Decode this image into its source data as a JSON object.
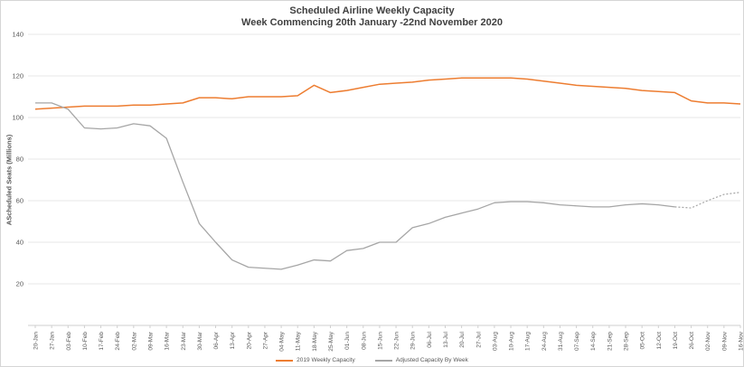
{
  "window": {
    "background": "#ffffff",
    "border_color": "#d6d6d6"
  },
  "chart_data": {
    "type": "line",
    "title": "Scheduled Airline Weekly Capacity",
    "subtitle": "Week Commencing 20th January -22nd November 2020",
    "ylabel": "AScheduled Seats (Millions)",
    "xlabel": "",
    "ylim": [
      0,
      140
    ],
    "yticks": [
      20,
      40,
      60,
      80,
      100,
      120,
      140
    ],
    "grid": true,
    "legend_position": "bottom",
    "gridline_color": "#e7e7e7",
    "axis_color": "#cfcfcf",
    "tick_label_color": "#595959",
    "categories": [
      "20-Jan",
      "27-Jan",
      "03-Feb",
      "10-Feb",
      "17-Feb",
      "24-Feb",
      "02-Mar",
      "09-Mar",
      "16-Mar",
      "23-Mar",
      "30-Mar",
      "06-Apr",
      "13-Apr",
      "20-Apr",
      "27-Apr",
      "04-May",
      "11-May",
      "18-May",
      "25-May",
      "01-Jun",
      "08-Jun",
      "15-Jun",
      "22-Jun",
      "29-Jun",
      "06-Jul",
      "13-Jul",
      "20-Jul",
      "27-Jul",
      "03-Aug",
      "10-Aug",
      "17-Aug",
      "24-Aug",
      "31-Aug",
      "07-Sep",
      "14-Sep",
      "21-Sep",
      "28-Sep",
      "05-Oct",
      "12-Oct",
      "19-Oct",
      "26-Oct",
      "02-Nov",
      "09-Nov",
      "16-Nov"
    ],
    "series": [
      {
        "name": "2019 Weekly Capacity",
        "color": "#ED7D31",
        "line_style": "solid",
        "values": [
          104,
          104.5,
          105,
          105.5,
          105.5,
          105.5,
          106,
          106,
          106.5,
          107,
          109.5,
          109.5,
          109,
          110,
          110,
          110,
          110.5,
          115.5,
          112,
          113,
          114.5,
          116,
          116.5,
          117,
          118,
          118.5,
          119,
          119,
          119,
          119,
          118.5,
          117.5,
          116.5,
          115.5,
          115,
          114.5,
          114,
          113,
          112.5,
          112,
          108,
          107,
          107,
          106.5
        ]
      },
      {
        "name": "Adjusted Capacity By Week",
        "color": "#A6A6A6",
        "line_style": "solid_then_dotted",
        "dotted_from_index": 39,
        "values": [
          107,
          107,
          104,
          95,
          94.5,
          95,
          97,
          96,
          90,
          69,
          49,
          40,
          31.5,
          28,
          27.5,
          27,
          29,
          31.5,
          31,
          36,
          37,
          40,
          40,
          47,
          49,
          52,
          54,
          56,
          59,
          59.5,
          59.5,
          59,
          58,
          57.5,
          57,
          57,
          58,
          58.5,
          58,
          57,
          56.5,
          60,
          63,
          64
        ]
      }
    ]
  }
}
